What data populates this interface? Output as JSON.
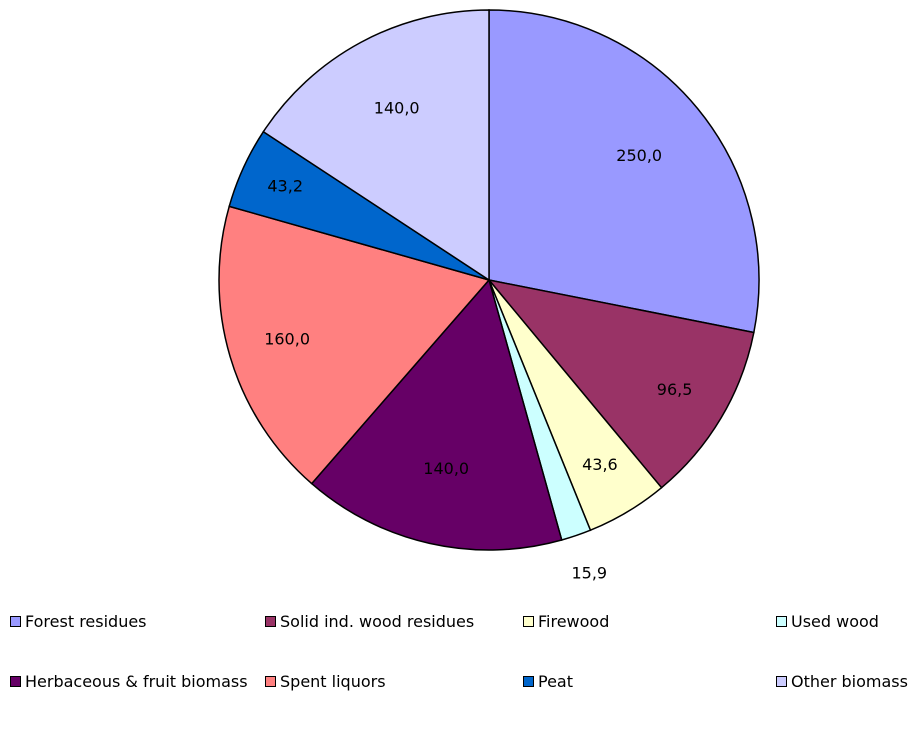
{
  "chart_data": {
    "type": "pie",
    "categories": [
      "Forest residues",
      "Solid ind. wood residues",
      "Firewood",
      "Used wood",
      "Herbaceous & fruit biomass",
      "Spent liquors",
      "Peat",
      "Other biomass"
    ],
    "values": [
      250.0,
      96.5,
      43.6,
      15.9,
      140.0,
      160.0,
      43.2,
      140.0
    ],
    "value_labels": [
      "250,0",
      "96,5",
      "43,6",
      "15,9",
      "140,0",
      "160,0",
      "43,2",
      "140,0"
    ],
    "colors": [
      "#9999FF",
      "#993366",
      "#FFFFCC",
      "#CCFFFF",
      "#660066",
      "#FF8080",
      "#0066CC",
      "#CCCCFF"
    ],
    "start_angle": "12 o'clock",
    "direction": "clockwise",
    "legend": "bottom"
  }
}
